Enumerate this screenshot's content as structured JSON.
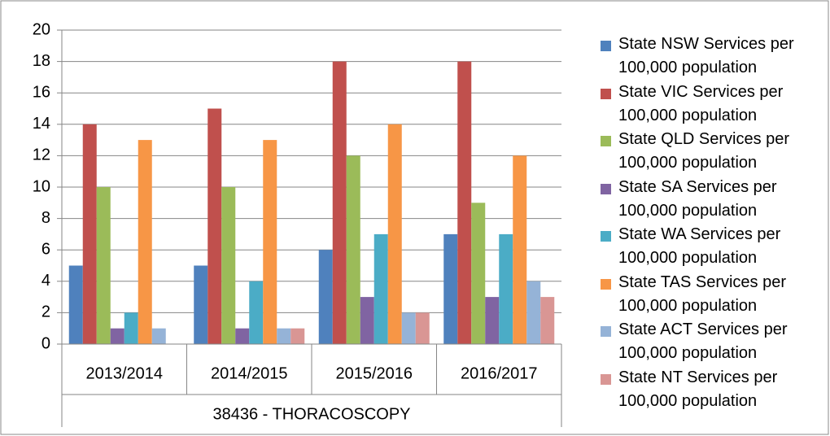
{
  "chart_data": {
    "type": "bar",
    "categories": [
      "2013/2014",
      "2014/2015",
      "2015/2016",
      "2016/2017"
    ],
    "xlabel": "38436 - THORACOSCOPY",
    "series": [
      {
        "name": "State NSW Services per 100,000 population",
        "color": "#4f81bd",
        "values": [
          5,
          5,
          6,
          7
        ]
      },
      {
        "name": "State VIC Services per 100,000 population",
        "color": "#c0504d",
        "values": [
          14,
          15,
          18,
          18
        ]
      },
      {
        "name": "State QLD Services per 100,000 population",
        "color": "#9bbb59",
        "values": [
          10,
          10,
          12,
          9
        ]
      },
      {
        "name": "State SA Services per 100,000 population",
        "color": "#8064a2",
        "values": [
          1,
          1,
          3,
          3
        ]
      },
      {
        "name": "State WA Services per 100,000 population",
        "color": "#4bacc6",
        "values": [
          2,
          4,
          7,
          7
        ]
      },
      {
        "name": "State TAS Services per 100,000 population",
        "color": "#f79646",
        "values": [
          13,
          13,
          14,
          12
        ]
      },
      {
        "name": "State ACT Services per 100,000 population",
        "color": "#95b3d7",
        "values": [
          1,
          1,
          2,
          4
        ]
      },
      {
        "name": "State NT Services per 100,000 population",
        "color": "#d99694",
        "values": [
          0,
          1,
          2,
          3
        ]
      }
    ],
    "ylim": [
      0,
      20
    ],
    "yticks": [
      0,
      2,
      4,
      6,
      8,
      10,
      12,
      14,
      16,
      18,
      20
    ],
    "grid": true,
    "legend": "right"
  }
}
